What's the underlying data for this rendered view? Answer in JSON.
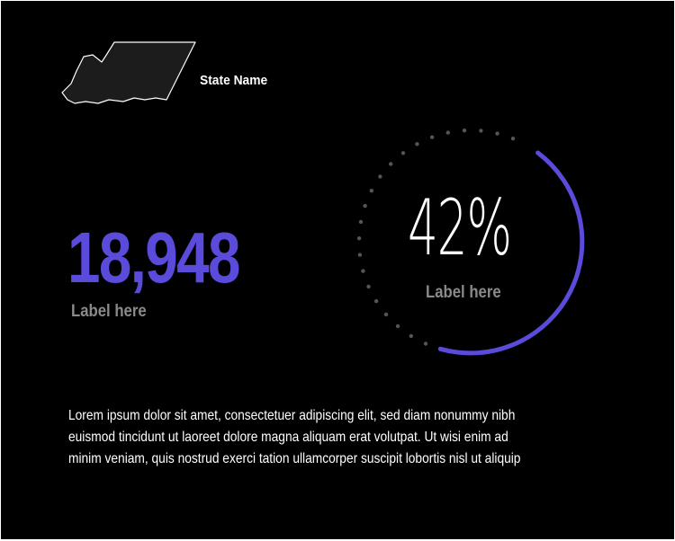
{
  "header": {
    "state_name": "State Name"
  },
  "stat_primary": {
    "value": "18,948",
    "label": "Label here"
  },
  "stat_ring": {
    "percent_text": "42%",
    "percent": 42,
    "label": "Label here"
  },
  "description": {
    "lines": [
      "Lorem ipsum dolor sit amet, consectetuer adipiscing elit, sed diam nonummy nibh",
      "euismod tincidunt ut laoreet dolore magna aliquam erat volutpat. Ut wisi enim ad",
      "minim veniam, quis nostrud exerci tation ullamcorper suscipit lobortis nisl ut aliquip"
    ]
  },
  "colors": {
    "accent": "#5b4bdb",
    "label": "#8a8a8a",
    "background": "#000000",
    "dots": "#555555"
  },
  "icons": {
    "map": "state-outline-icon"
  }
}
